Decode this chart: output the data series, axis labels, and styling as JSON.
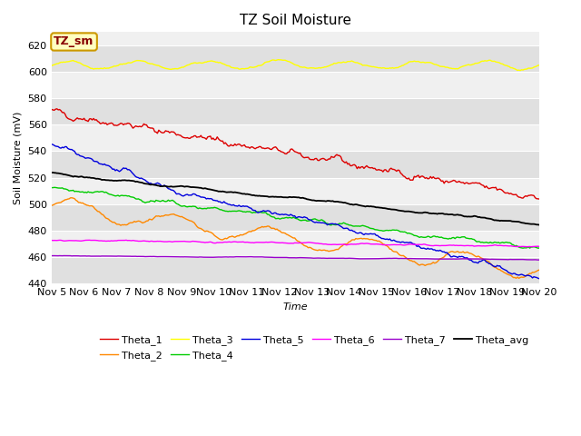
{
  "title": "TZ Soil Moisture",
  "xlabel": "Time",
  "ylabel": "Soil Moisture (mV)",
  "legend_label": "TZ_sm",
  "ylim": [
    440,
    630
  ],
  "yticks": [
    440,
    460,
    480,
    500,
    520,
    540,
    560,
    580,
    600,
    620
  ],
  "xtick_labels": [
    "Nov 5",
    "Nov 6",
    "Nov 7",
    "Nov 8",
    "Nov 9",
    "Nov 10",
    "Nov 11",
    "Nov 12",
    "Nov 13",
    "Nov 14",
    "Nov 15",
    "Nov 16",
    "Nov 17",
    "Nov 18",
    "Nov 19",
    "Nov 20"
  ],
  "n_points": 360,
  "series_colors": {
    "Theta_1": "#dd0000",
    "Theta_2": "#ff8800",
    "Theta_3": "#ffff00",
    "Theta_4": "#00cc00",
    "Theta_5": "#0000dd",
    "Theta_6": "#ff00ff",
    "Theta_7": "#9900cc",
    "Theta_avg": "#000000"
  },
  "fig_bg": "#ffffff",
  "plot_bg_light": "#f0f0f0",
  "plot_bg_dark": "#e0e0e0",
  "title_fontsize": 11,
  "axis_fontsize": 8,
  "tick_fontsize": 8
}
